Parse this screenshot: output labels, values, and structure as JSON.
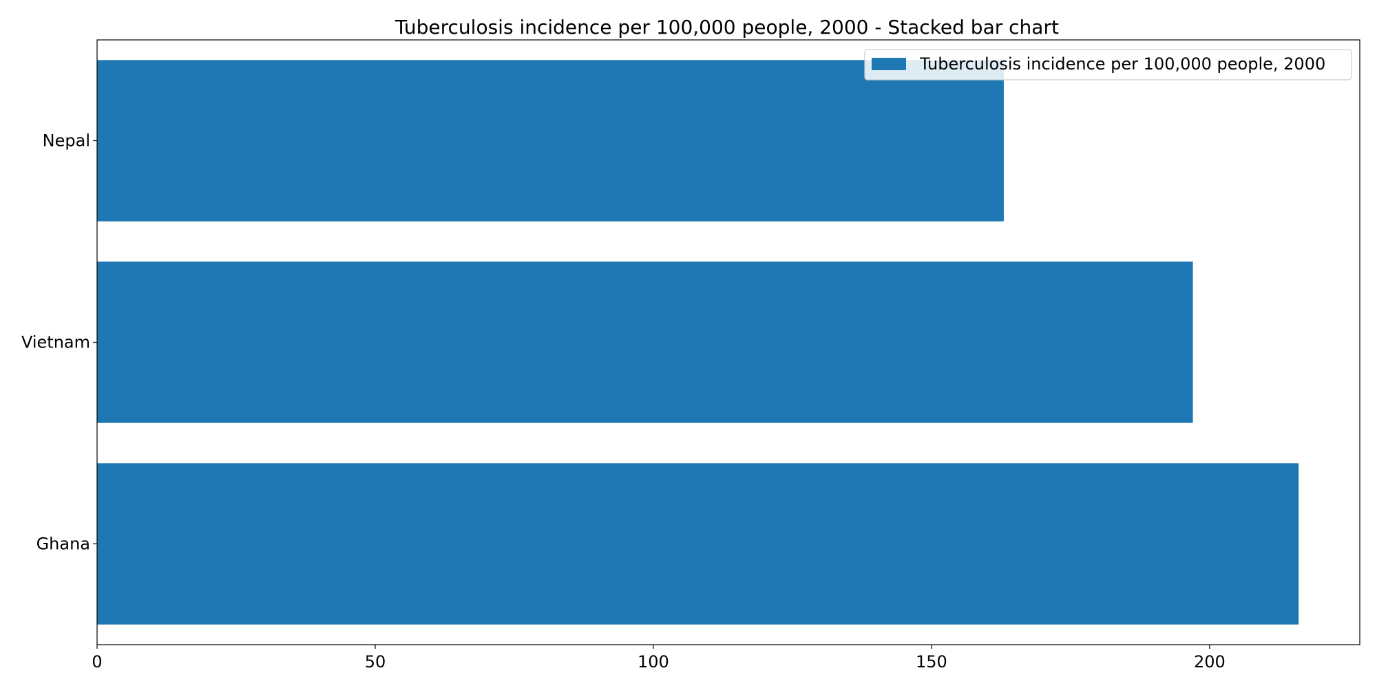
{
  "chart_data": {
    "type": "bar",
    "orientation": "horizontal",
    "title": "Tuberculosis incidence per 100,000 people, 2000 - Stacked bar chart",
    "categories": [
      "Nepal",
      "Vietnam",
      "Ghana"
    ],
    "series": [
      {
        "name": "Tuberculosis incidence per 100,000 people, 2000",
        "color": "#1f77b4",
        "values": [
          163,
          197,
          216
        ]
      }
    ],
    "xlim": [
      0,
      227
    ],
    "xticks": [
      0,
      50,
      100,
      150,
      200
    ],
    "xlabel": "",
    "ylabel": "",
    "grid": false,
    "legend_position": "top-right"
  }
}
